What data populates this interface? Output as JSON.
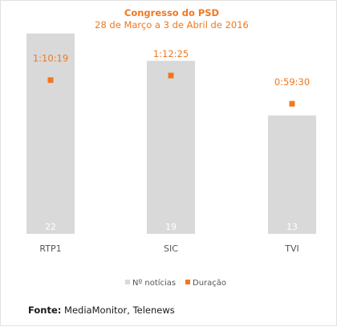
{
  "colors": {
    "bar": "#d9d9d9",
    "marker": "#f07820",
    "title": "#f07820",
    "bar_value_text": "#ffffff",
    "axis_text": "#555555"
  },
  "chart_data": {
    "type": "bar",
    "title": "Congresso do PSD",
    "subtitle": "28 de Março  a 3 de Abril de 2016",
    "categories": [
      "RTP1",
      "SIC",
      "TVI"
    ],
    "series": [
      {
        "name": "Nº notícias",
        "type": "bar",
        "values": [
          22,
          19,
          13
        ],
        "value_labels": [
          "22",
          "19",
          "13"
        ]
      },
      {
        "name": "Duração",
        "type": "scatter",
        "values_seconds": [
          4219,
          4345,
          3570
        ],
        "value_labels": [
          "1:10:19",
          "1:12:25",
          "0:59:30"
        ]
      }
    ],
    "ylim_bars": [
      0,
      24
    ],
    "ylim_duration_seconds": [
      0,
      6000
    ],
    "grid": false,
    "legend_position": "bottom"
  },
  "source": {
    "label": "Fonte:",
    "text": "MediaMonitor, Telenews"
  }
}
